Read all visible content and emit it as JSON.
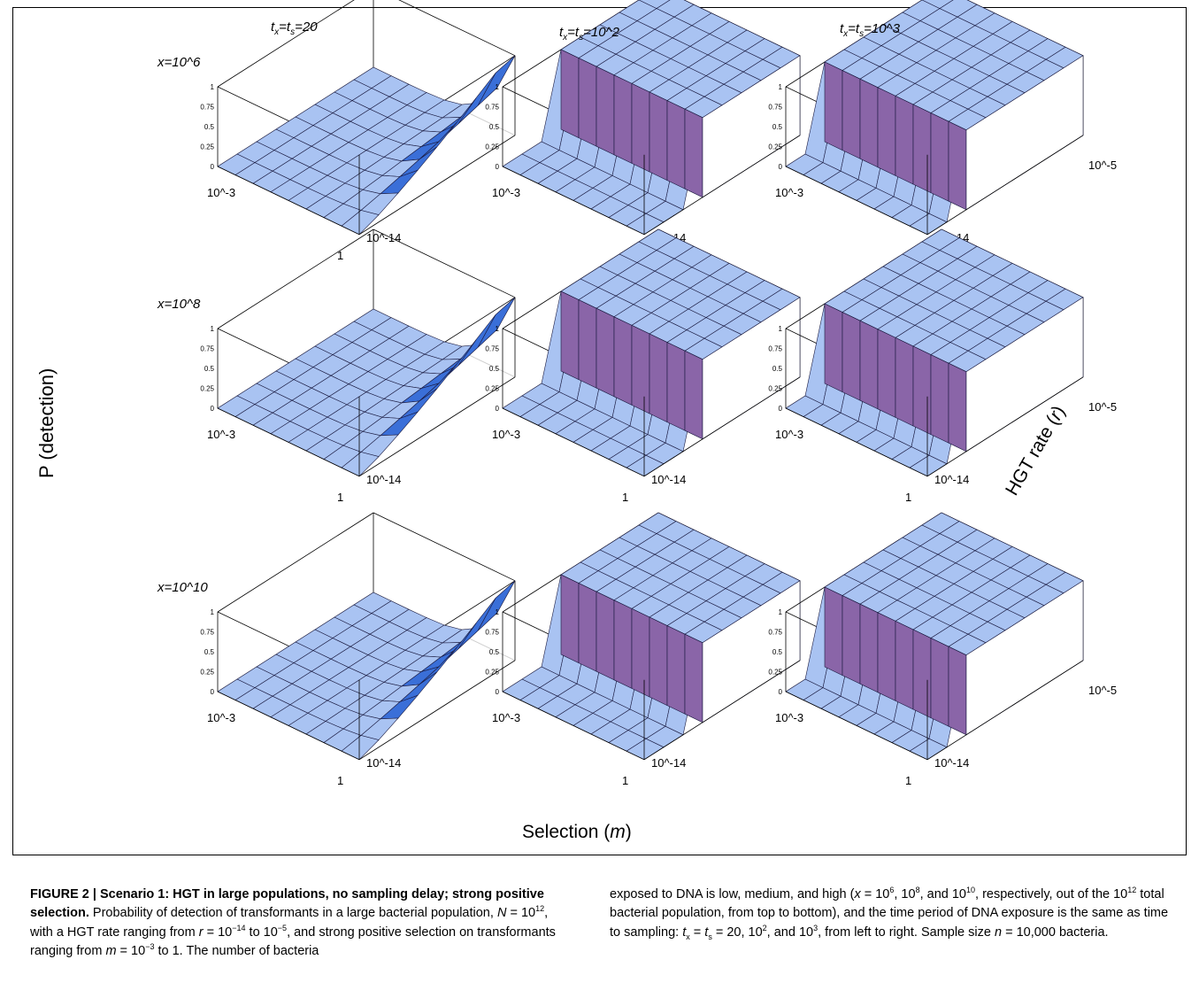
{
  "figure": {
    "col_titles": [
      {
        "pre": "t",
        "sub1": "x",
        "mid": "=t",
        "sub2": "s",
        "post": "=20"
      },
      {
        "pre": "t",
        "sub1": "x",
        "mid": "=t",
        "sub2": "s",
        "post": "=10^2"
      },
      {
        "pre": "t",
        "sub1": "x",
        "mid": "=t",
        "sub2": "s",
        "post": "=10^3"
      }
    ],
    "row_labels": [
      "x=10^6",
      "x=10^8",
      "x=10^10"
    ],
    "y_axis_label": "P (detection)",
    "x_axis_label_pre": "Selection (",
    "x_axis_label_var": "m",
    "x_axis_label_post": ")",
    "r_axis_label_pre": "HGT rate (",
    "r_axis_label_var": "r",
    "r_axis_label_post": ")",
    "z_ticks": [
      "1",
      "0.75",
      "0.5",
      "0.25",
      "0"
    ],
    "m_ticks": [
      "10^-3",
      "1"
    ],
    "r_ticks": [
      "10^-5",
      "10^-14"
    ],
    "colors": {
      "surface_top": "#a9c3f2",
      "surface_side": "#8a65a8",
      "surface_ramp": "#3a6fd8",
      "mesh": "#1a1a40"
    }
  },
  "chart_data": [
    {
      "type": "surface",
      "row": "x=10^6",
      "col": "t_x=t_s=20",
      "zlim": [
        0,
        1
      ],
      "x": [
        "10^-3",
        "1"
      ],
      "y": [
        "10^-14",
        "10^-5"
      ],
      "pattern": "near 0 except ramp to 1 at m=1 and high r"
    },
    {
      "type": "surface",
      "row": "x=10^6",
      "col": "t_x=t_s=10^2",
      "zlim": [
        0,
        1
      ],
      "x": [
        "10^-3",
        "1"
      ],
      "y": [
        "10^-14",
        "10^-5"
      ],
      "pattern": "step to 1 for r above ~10^-11"
    },
    {
      "type": "surface",
      "row": "x=10^6",
      "col": "t_x=t_s=10^3",
      "zlim": [
        0,
        1
      ],
      "x": [
        "10^-3",
        "1"
      ],
      "y": [
        "10^-14",
        "10^-5"
      ],
      "pattern": "step to 1 for r above ~10^-12"
    },
    {
      "type": "surface",
      "row": "x=10^8",
      "col": "t_x=t_s=20",
      "zlim": [
        0,
        1
      ],
      "x": [
        "10^-3",
        "1"
      ],
      "y": [
        "10^-14",
        "10^-5"
      ],
      "pattern": "near 0 except ramp to 1 at m=1 and high r"
    },
    {
      "type": "surface",
      "row": "x=10^8",
      "col": "t_x=t_s=10^2",
      "zlim": [
        0,
        1
      ],
      "x": [
        "10^-3",
        "1"
      ],
      "y": [
        "10^-14",
        "10^-5"
      ],
      "pattern": "step to 1 for r above ~10^-12"
    },
    {
      "type": "surface",
      "row": "x=10^8",
      "col": "t_x=t_s=10^3",
      "zlim": [
        0,
        1
      ],
      "x": [
        "10^-3",
        "1"
      ],
      "y": [
        "10^-14",
        "10^-5"
      ],
      "pattern": "step to 1 for r above ~10^-13"
    },
    {
      "type": "surface",
      "row": "x=10^10",
      "col": "t_x=t_s=20",
      "zlim": [
        0,
        1
      ],
      "x": [
        "10^-3",
        "1"
      ],
      "y": [
        "10^-14",
        "10^-5"
      ],
      "pattern": "near 0 except ramp to 1 at m=1 and high r"
    },
    {
      "type": "surface",
      "row": "x=10^10",
      "col": "t_x=t_s=10^2",
      "zlim": [
        0,
        1
      ],
      "x": [
        "10^-3",
        "1"
      ],
      "y": [
        "10^-14",
        "10^-5"
      ],
      "pattern": "step to 1 for r above ~10^-12"
    },
    {
      "type": "surface",
      "row": "x=10^10",
      "col": "t_x=t_s=10^3",
      "zlim": [
        0,
        1
      ],
      "x": [
        "10^-3",
        "1"
      ],
      "y": [
        "10^-14",
        "10^-5"
      ],
      "pattern": "step to 1 for r above ~10^-13"
    }
  ],
  "caption": {
    "fig_label": "FIGURE 2 | Scenario 1: HGT in large populations, no sampling delay; strong positive selection.",
    "p1": " Probability of detection of transformants in a large bacterial population, ",
    "N": "N",
    "eqN": " = 10",
    "supN": "12",
    "p2": ", with a HGT rate ranging from ",
    "r": "r",
    "eqr": " = 10",
    "supr1": "−14",
    "to1": " to 10",
    "supr2": "−5",
    "p3": ", and strong positive selection on transformants ranging from ",
    "m": "m",
    "eqm": " = 10",
    "supm": "−3",
    "p4": " to 1. The number of bacteria",
    "right1": "exposed to DNA is low, medium, and high (",
    "x": "x",
    "eqx": " = 10",
    "supx1": "6",
    "c1": ", 10",
    "supx2": "8",
    "c2": ", and 10",
    "supx3": "10",
    "right2": ", respectively, out of the 10",
    "supt": "12",
    "right3": " total bacterial population, from top to bottom), and the time period of DNA exposure is the same as time to sampling: ",
    "t1": "t",
    "sx": "x",
    "eqt": " = ",
    "t2": "t",
    "ss": "s",
    "eqv": " = 20, 10",
    "supv1": "2",
    "c3": ", and 10",
    "supv2": "3",
    "right4": ", from left to right. Sample size ",
    "n": "n",
    "eqn": " = 10,000 bacteria."
  }
}
